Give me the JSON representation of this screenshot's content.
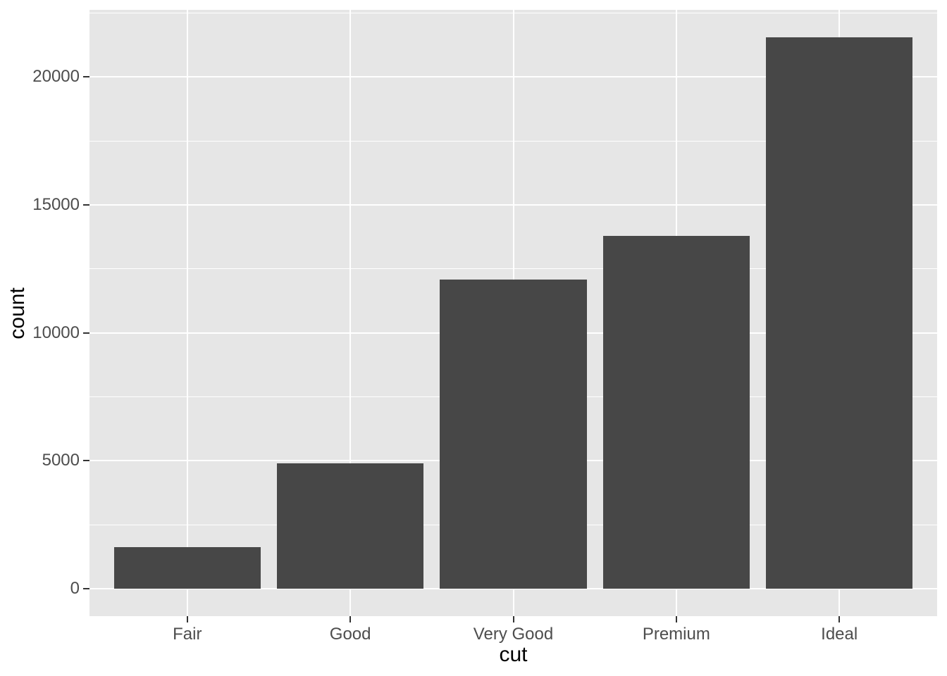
{
  "chart_data": {
    "type": "bar",
    "title": "",
    "categories": [
      "Fair",
      "Good",
      "Very Good",
      "Premium",
      "Ideal"
    ],
    "values": [
      1610,
      4906,
      12082,
      13791,
      21551
    ],
    "xlabel": "cut",
    "ylabel": "count",
    "y_tick_values": [
      0,
      5000,
      10000,
      15000,
      20000
    ],
    "y_tick_labels": [
      "0",
      "5000",
      "10000",
      "15000",
      "20000"
    ],
    "y_minor_values": [
      2500,
      7500,
      12500,
      17500,
      22500
    ],
    "ylim": [
      -1078,
      22629
    ],
    "bar_width_fraction": 0.9,
    "category_edge_expansion": 0.6,
    "grid": "on",
    "legend": "none",
    "colors": {
      "bar_fill": "#474747",
      "panel_background": "#e6e6e6",
      "gridline": "#ffffff",
      "tick_label_color": "#4d4d4d",
      "axis_title_color": "#000000",
      "tick_mark_color": "#333333",
      "figure_background": "#ffffff"
    }
  }
}
